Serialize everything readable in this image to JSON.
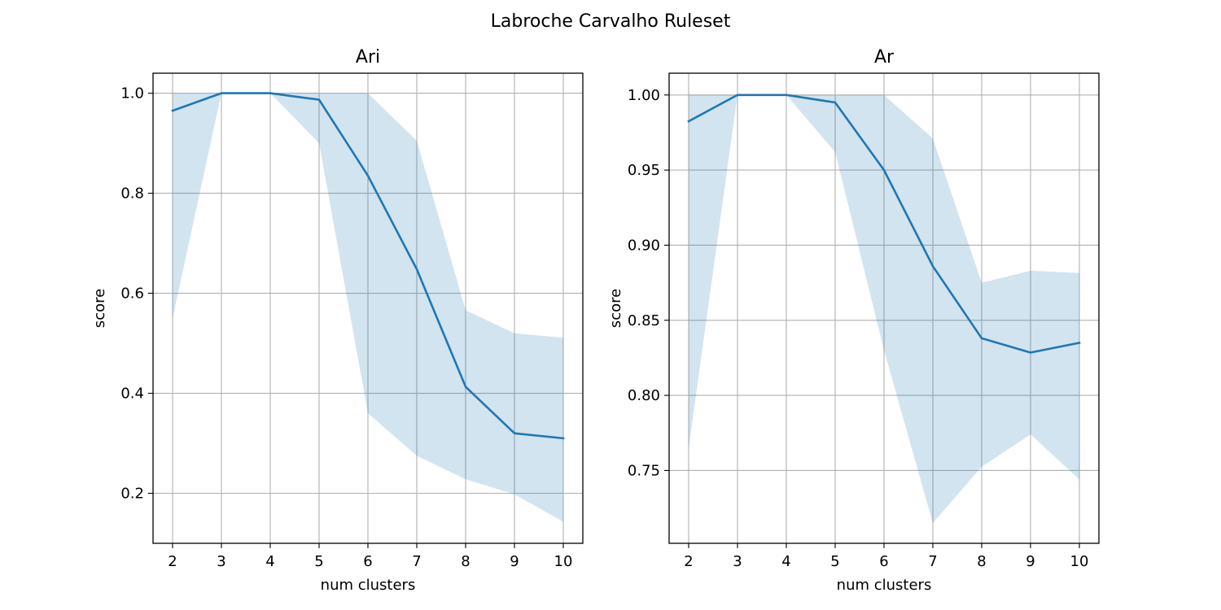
{
  "figure": {
    "suptitle": "Labroche Carvalho Ruleset"
  },
  "colors": {
    "line": "#1f77b4",
    "band": "#1f77b4",
    "band_opacity": 0.2
  },
  "chart_data": [
    {
      "type": "line",
      "title": "Ari",
      "xlabel": "num clusters",
      "ylabel": "score",
      "xlim": [
        1.6,
        10.4
      ],
      "ylim": [
        0.1,
        1.04
      ],
      "grid": true,
      "x": [
        2,
        3,
        4,
        5,
        6,
        7,
        8,
        9,
        10
      ],
      "xticks": [
        "2",
        "3",
        "4",
        "5",
        "6",
        "7",
        "8",
        "9",
        "10"
      ],
      "yticks": [
        0.2,
        0.4,
        0.6,
        0.8,
        1.0
      ],
      "ytick_labels": [
        "0.2",
        "0.4",
        "0.6",
        "0.8",
        "1.0"
      ],
      "series": [
        {
          "values": [
            0.965,
            1.0,
            1.0,
            0.987,
            0.835,
            0.648,
            0.413,
            0.32,
            0.31
          ],
          "band_upper": [
            1.0,
            1.0,
            1.0,
            1.0,
            1.0,
            0.905,
            0.566,
            0.52,
            0.511
          ],
          "band_lower": [
            0.55,
            1.0,
            1.0,
            0.9,
            0.36,
            0.275,
            0.228,
            0.198,
            0.143
          ]
        }
      ]
    },
    {
      "type": "line",
      "title": "Ar",
      "xlabel": "num clusters",
      "ylabel": "score",
      "xlim": [
        1.6,
        10.4
      ],
      "ylim": [
        0.7015,
        1.0145
      ],
      "grid": true,
      "x": [
        2,
        3,
        4,
        5,
        6,
        7,
        8,
        9,
        10
      ],
      "xticks": [
        "2",
        "3",
        "4",
        "5",
        "6",
        "7",
        "8",
        "9",
        "10"
      ],
      "yticks": [
        0.75,
        0.8,
        0.85,
        0.9,
        0.95,
        1.0
      ],
      "ytick_labels": [
        "0.75",
        "0.80",
        "0.85",
        "0.90",
        "0.95",
        "1.00"
      ],
      "series": [
        {
          "values": [
            0.9825,
            1.0,
            1.0,
            0.995,
            0.95,
            0.886,
            0.838,
            0.8285,
            0.835
          ],
          "band_upper": [
            1.0,
            1.0,
            1.0,
            1.0,
            1.0,
            0.971,
            0.875,
            0.883,
            0.8815
          ],
          "band_lower": [
            0.765,
            1.0,
            1.0,
            0.962,
            0.83,
            0.715,
            0.7525,
            0.774,
            0.744
          ]
        }
      ]
    }
  ]
}
